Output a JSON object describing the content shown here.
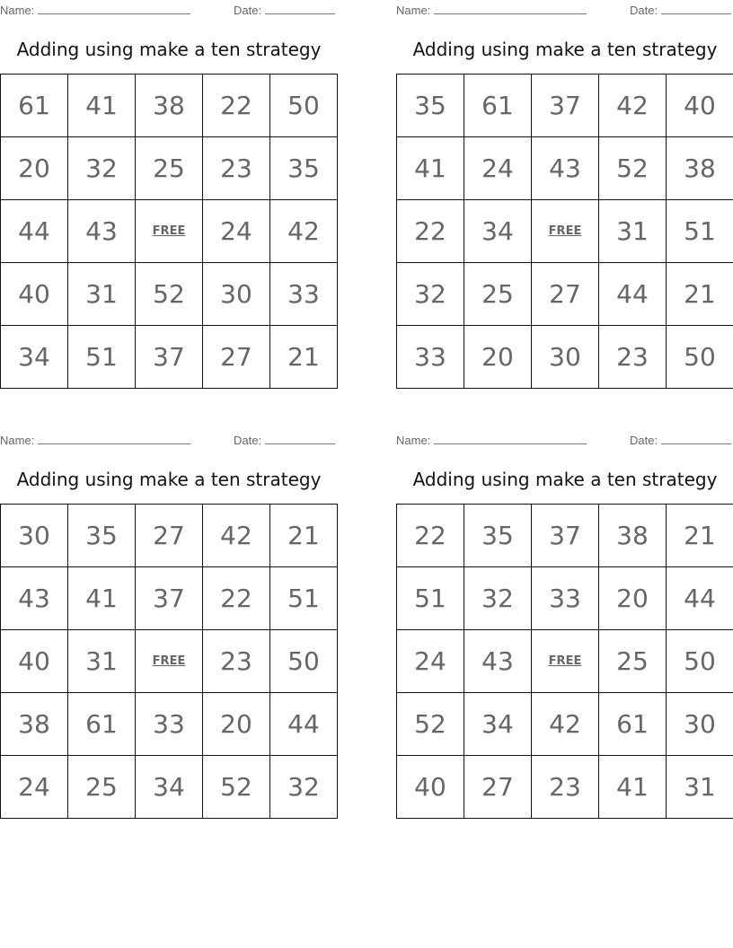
{
  "labels": {
    "name": "Name:",
    "date": "Date:",
    "free": "FREE"
  },
  "cards": [
    {
      "title": "Adding using make a ten strategy",
      "rows": [
        [
          "61",
          "41",
          "38",
          "22",
          "50"
        ],
        [
          "20",
          "32",
          "25",
          "23",
          "35"
        ],
        [
          "44",
          "43",
          "FREE",
          "24",
          "42"
        ],
        [
          "40",
          "31",
          "52",
          "30",
          "33"
        ],
        [
          "34",
          "51",
          "37",
          "27",
          "21"
        ]
      ]
    },
    {
      "title": "Adding using make a ten strategy",
      "rows": [
        [
          "35",
          "61",
          "37",
          "42",
          "40"
        ],
        [
          "41",
          "24",
          "43",
          "52",
          "38"
        ],
        [
          "22",
          "34",
          "FREE",
          "31",
          "51"
        ],
        [
          "32",
          "25",
          "27",
          "44",
          "21"
        ],
        [
          "33",
          "20",
          "30",
          "23",
          "50"
        ]
      ]
    },
    {
      "title": "Adding using make a ten strategy",
      "rows": [
        [
          "30",
          "35",
          "27",
          "42",
          "21"
        ],
        [
          "43",
          "41",
          "37",
          "22",
          "51"
        ],
        [
          "40",
          "31",
          "FREE",
          "23",
          "50"
        ],
        [
          "38",
          "61",
          "33",
          "20",
          "44"
        ],
        [
          "24",
          "25",
          "34",
          "52",
          "32"
        ]
      ]
    },
    {
      "title": "Adding using make a ten strategy",
      "rows": [
        [
          "22",
          "35",
          "37",
          "38",
          "21"
        ],
        [
          "51",
          "32",
          "33",
          "20",
          "44"
        ],
        [
          "24",
          "43",
          "FREE",
          "25",
          "50"
        ],
        [
          "52",
          "34",
          "42",
          "61",
          "30"
        ],
        [
          "40",
          "27",
          "23",
          "41",
          "31"
        ]
      ]
    }
  ]
}
